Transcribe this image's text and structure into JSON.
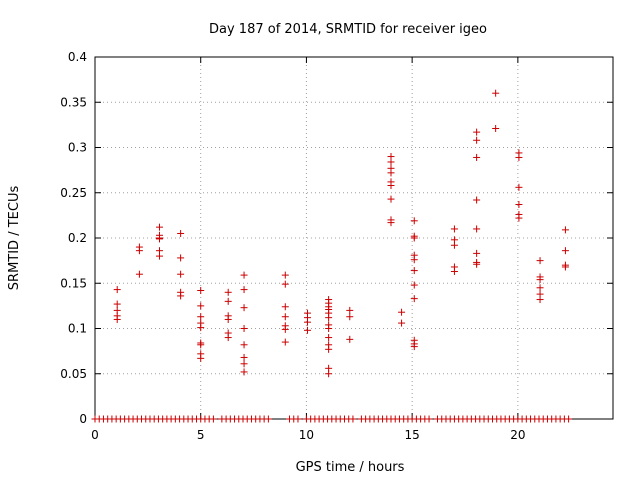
{
  "chart_data": {
    "type": "scatter",
    "title": "Day 187 of 2014, SRMTID for receiver igeo",
    "xlabel": "GPS time / hours",
    "ylabel": "SRMTID / TECUs",
    "xlim": [
      0,
      24.5
    ],
    "ylim": [
      0,
      0.4
    ],
    "grid": true,
    "marker": "+",
    "marker_color": "#cc0000",
    "xticks": [
      0,
      5,
      10,
      15,
      20
    ],
    "xtick_labels": [
      "0",
      "5",
      "10",
      "15",
      "20"
    ],
    "yticks": [
      0,
      0.05,
      0.1,
      0.15,
      0.2,
      0.25,
      0.3,
      0.35,
      0.4
    ],
    "ytick_labels": [
      "0",
      "0.05",
      "0.1",
      "0.15",
      "0.2",
      "0.25",
      "0.3",
      "0.35",
      "0.4"
    ],
    "series": [
      {
        "name": "SRMTID",
        "points": [
          [
            1.05,
            0.143
          ],
          [
            1.05,
            0.127
          ],
          [
            1.05,
            0.12
          ],
          [
            1.05,
            0.114
          ],
          [
            1.05,
            0.11
          ],
          [
            2.1,
            0.19
          ],
          [
            2.1,
            0.186
          ],
          [
            2.1,
            0.16
          ],
          [
            3.05,
            0.212
          ],
          [
            3.05,
            0.203
          ],
          [
            3.05,
            0.2
          ],
          [
            3.05,
            0.199
          ],
          [
            3.05,
            0.186
          ],
          [
            3.05,
            0.18
          ],
          [
            4.05,
            0.205
          ],
          [
            4.05,
            0.178
          ],
          [
            4.05,
            0.16
          ],
          [
            4.05,
            0.14
          ],
          [
            4.05,
            0.136
          ],
          [
            5.0,
            0.142
          ],
          [
            5.0,
            0.125
          ],
          [
            5.0,
            0.113
          ],
          [
            5.0,
            0.106
          ],
          [
            5.0,
            0.101
          ],
          [
            5.0,
            0.084
          ],
          [
            5.0,
            0.082
          ],
          [
            5.0,
            0.072
          ],
          [
            5.0,
            0.067
          ],
          [
            6.3,
            0.14
          ],
          [
            6.3,
            0.13
          ],
          [
            6.3,
            0.114
          ],
          [
            6.3,
            0.11
          ],
          [
            6.3,
            0.095
          ],
          [
            6.3,
            0.09
          ],
          [
            7.05,
            0.159
          ],
          [
            7.05,
            0.143
          ],
          [
            7.05,
            0.123
          ],
          [
            7.05,
            0.1
          ],
          [
            7.05,
            0.082
          ],
          [
            7.05,
            0.068
          ],
          [
            7.05,
            0.061
          ],
          [
            7.05,
            0.052
          ],
          [
            9.0,
            0.159
          ],
          [
            9.0,
            0.149
          ],
          [
            9.0,
            0.124
          ],
          [
            9.0,
            0.113
          ],
          [
            9.0,
            0.103
          ],
          [
            9.0,
            0.099
          ],
          [
            9.0,
            0.085
          ],
          [
            10.05,
            0.117
          ],
          [
            10.05,
            0.112
          ],
          [
            10.05,
            0.107
          ],
          [
            10.05,
            0.098
          ],
          [
            11.05,
            0.132
          ],
          [
            11.05,
            0.128
          ],
          [
            11.05,
            0.124
          ],
          [
            11.05,
            0.121
          ],
          [
            11.05,
            0.117
          ],
          [
            11.05,
            0.112
          ],
          [
            11.05,
            0.104
          ],
          [
            11.05,
            0.1
          ],
          [
            11.05,
            0.09
          ],
          [
            11.05,
            0.082
          ],
          [
            11.05,
            0.077
          ],
          [
            11.05,
            0.056
          ],
          [
            11.05,
            0.05
          ],
          [
            12.05,
            0.12
          ],
          [
            12.05,
            0.113
          ],
          [
            12.05,
            0.088
          ],
          [
            14.0,
            0.29
          ],
          [
            14.0,
            0.284
          ],
          [
            14.0,
            0.277
          ],
          [
            14.0,
            0.272
          ],
          [
            14.0,
            0.262
          ],
          [
            14.0,
            0.258
          ],
          [
            14.0,
            0.243
          ],
          [
            14.0,
            0.22
          ],
          [
            14.0,
            0.217
          ],
          [
            14.5,
            0.118
          ],
          [
            14.5,
            0.106
          ],
          [
            15.1,
            0.219
          ],
          [
            15.1,
            0.202
          ],
          [
            15.1,
            0.2
          ],
          [
            15.1,
            0.181
          ],
          [
            15.1,
            0.176
          ],
          [
            15.1,
            0.164
          ],
          [
            15.1,
            0.148
          ],
          [
            15.1,
            0.133
          ],
          [
            15.1,
            0.087
          ],
          [
            15.1,
            0.083
          ],
          [
            15.1,
            0.08
          ],
          [
            17.0,
            0.21
          ],
          [
            17.0,
            0.198
          ],
          [
            17.0,
            0.192
          ],
          [
            17.0,
            0.168
          ],
          [
            17.0,
            0.163
          ],
          [
            18.05,
            0.317
          ],
          [
            18.05,
            0.308
          ],
          [
            18.05,
            0.289
          ],
          [
            18.05,
            0.242
          ],
          [
            18.05,
            0.21
          ],
          [
            18.05,
            0.183
          ],
          [
            18.05,
            0.173
          ],
          [
            18.05,
            0.171
          ],
          [
            18.95,
            0.36
          ],
          [
            18.95,
            0.321
          ],
          [
            20.05,
            0.294
          ],
          [
            20.05,
            0.289
          ],
          [
            20.05,
            0.256
          ],
          [
            20.05,
            0.237
          ],
          [
            20.05,
            0.226
          ],
          [
            20.05,
            0.222
          ],
          [
            21.05,
            0.175
          ],
          [
            21.05,
            0.157
          ],
          [
            21.05,
            0.154
          ],
          [
            21.05,
            0.145
          ],
          [
            21.05,
            0.138
          ],
          [
            21.05,
            0.132
          ],
          [
            22.25,
            0.209
          ],
          [
            22.25,
            0.186
          ],
          [
            22.25,
            0.17
          ],
          [
            22.25,
            0.168
          ]
        ],
        "zero_markers_x": {
          "start": 0,
          "step": 0.2,
          "gaps": [
            [
              5.8,
              5.95
            ],
            [
              8.4,
              9.0
            ],
            [
              9.6,
              9.95
            ],
            [
              12.2,
              12.5
            ],
            [
              15.8,
              16.0
            ],
            [
              22.5,
              24.5
            ]
          ]
        }
      }
    ]
  }
}
